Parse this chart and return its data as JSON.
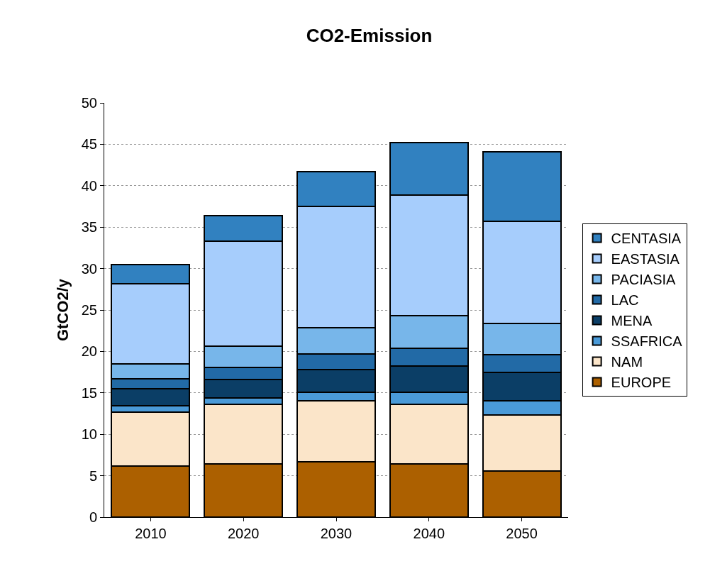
{
  "chart_data": {
    "type": "bar",
    "title": "CO2-Emission",
    "ylabel": "GtCO2/y",
    "categories": [
      "2010",
      "2020",
      "2030",
      "2040",
      "2050"
    ],
    "stacked": true,
    "series": [
      {
        "name": "EUROPE",
        "color": "#ac6000",
        "values": [
          6.2,
          6.4,
          6.7,
          6.4,
          5.6
        ]
      },
      {
        "name": "NAM",
        "color": "#fbe5c9",
        "values": [
          6.5,
          7.2,
          7.3,
          7.2,
          6.7
        ]
      },
      {
        "name": "SSAFRICA",
        "color": "#4a9ad8",
        "values": [
          0.7,
          0.8,
          1.1,
          1.5,
          1.7
        ]
      },
      {
        "name": "MENA",
        "color": "#0b3e66",
        "values": [
          2.1,
          2.2,
          2.7,
          3.1,
          3.5
        ]
      },
      {
        "name": "LAC",
        "color": "#226aa6",
        "values": [
          1.2,
          1.5,
          1.9,
          2.2,
          2.1
        ]
      },
      {
        "name": "PACIASIA",
        "color": "#77b6ea",
        "values": [
          1.8,
          2.5,
          3.2,
          3.9,
          3.8
        ]
      },
      {
        "name": "EASTASIA",
        "color": "#a6cdfc",
        "values": [
          9.7,
          12.7,
          14.6,
          14.6,
          12.3
        ]
      },
      {
        "name": "CENTASIA",
        "color": "#3181c0",
        "values": [
          2.3,
          3.1,
          4.2,
          6.3,
          8.4
        ]
      }
    ],
    "ylim": [
      0,
      50
    ],
    "yticks": [
      0,
      5,
      10,
      15,
      20,
      25,
      30,
      35,
      40,
      45,
      50
    ],
    "grid": "y",
    "legend": "right"
  }
}
